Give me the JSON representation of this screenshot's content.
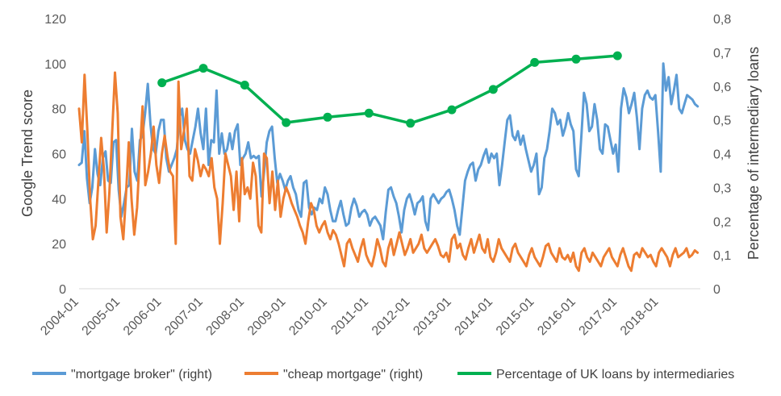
{
  "chart_data": {
    "type": "line",
    "title": "",
    "x_labels": [
      "2004-01",
      "2005-01",
      "2006-01",
      "2007-01",
      "2008-01",
      "2009-01",
      "2010-01",
      "2011-01",
      "2012-01",
      "2013-01",
      "2014-01",
      "2015-01",
      "2016-01",
      "2017-01",
      "2018-01"
    ],
    "y_left": {
      "label": "Google Trend score",
      "min": 0,
      "max": 120,
      "ticks": [
        "0",
        "20",
        "40",
        "60",
        "80",
        "100",
        "120"
      ]
    },
    "y_right": {
      "label": "Percentage of intermediary loans",
      "min": 0,
      "max": 0.8,
      "ticks": [
        "0",
        "0,1",
        "0,2",
        "0,3",
        "0,4",
        "0,5",
        "0,6",
        "0,7",
        "0,8"
      ]
    },
    "legend": {
      "position": "bottom"
    },
    "grid": false,
    "series": [
      {
        "name": "\"mortgage broker\" (right)",
        "axis": "left",
        "color": "#5B9BD5",
        "values": [
          55,
          56,
          70,
          49,
          38,
          45,
          62,
          51,
          46,
          58,
          61,
          48,
          47,
          65,
          66,
          44,
          32,
          38,
          45,
          46,
          71,
          52,
          48,
          66,
          68,
          78,
          91,
          73,
          62,
          60,
          70,
          75,
          75,
          58,
          52,
          55,
          58,
          62,
          76,
          80,
          66,
          62,
          60,
          66,
          72,
          80,
          69,
          62,
          80,
          55,
          66,
          65,
          88,
          60,
          69,
          60,
          62,
          69,
          62,
          70,
          73,
          55,
          58,
          60,
          65,
          58,
          59,
          58,
          59,
          41,
          52,
          65,
          70,
          72,
          58,
          47,
          51,
          48,
          44,
          48,
          50,
          45,
          42,
          35,
          32,
          47,
          48,
          36,
          33,
          36,
          35,
          40,
          38,
          45,
          42,
          35,
          30,
          30,
          35,
          39,
          33,
          28,
          29,
          36,
          40,
          37,
          32,
          34,
          35,
          33,
          28,
          31,
          32,
          30,
          28,
          22,
          34,
          44,
          45,
          41,
          38,
          32,
          25,
          35,
          40,
          42,
          38,
          33,
          38,
          39,
          41,
          30,
          26,
          40,
          42,
          40,
          38,
          40,
          41,
          43,
          44,
          40,
          35,
          28,
          24,
          36,
          48,
          52,
          55,
          56,
          48,
          53,
          55,
          59,
          62,
          56,
          60,
          58,
          60,
          46,
          55,
          65,
          75,
          77,
          68,
          66,
          70,
          64,
          68,
          62,
          57,
          52,
          55,
          60,
          42,
          45,
          58,
          62,
          70,
          80,
          78,
          73,
          75,
          68,
          72,
          78,
          73,
          70,
          53,
          50,
          68,
          87,
          82,
          70,
          72,
          82,
          75,
          62,
          60,
          73,
          72,
          66,
          60,
          64,
          52,
          80,
          89,
          85,
          78,
          82,
          87,
          76,
          62,
          80,
          86,
          88,
          85,
          84,
          86,
          70,
          52,
          100,
          88,
          94,
          82,
          88,
          95,
          80,
          78,
          82,
          86,
          85,
          84,
          82,
          81
        ]
      },
      {
        "name": "\"cheap mortgage\" (right)",
        "axis": "left",
        "color": "#ED7D31",
        "values": [
          80,
          65,
          95,
          70,
          40,
          22,
          28,
          48,
          67,
          53,
          25,
          43,
          70,
          96,
          78,
          32,
          22,
          42,
          65,
          40,
          24,
          36,
          60,
          81,
          46,
          52,
          60,
          72,
          55,
          47,
          60,
          68,
          59,
          52,
          50,
          20,
          92,
          62,
          70,
          80,
          50,
          48,
          62,
          57,
          50,
          55,
          53,
          50,
          58,
          45,
          40,
          20,
          38,
          60,
          55,
          50,
          35,
          52,
          30,
          58,
          42,
          45,
          40,
          56,
          50,
          28,
          25,
          60,
          58,
          38,
          52,
          35,
          48,
          32,
          40,
          45,
          42,
          38,
          35,
          32,
          28,
          25,
          20,
          30,
          38,
          35,
          28,
          25,
          28,
          30,
          25,
          22,
          26,
          24,
          20,
          15,
          10,
          20,
          22,
          18,
          15,
          12,
          18,
          22,
          15,
          12,
          10,
          15,
          22,
          18,
          12,
          10,
          18,
          22,
          15,
          20,
          25,
          20,
          15,
          18,
          22,
          16,
          18,
          20,
          24,
          18,
          16,
          18,
          20,
          22,
          19,
          15,
          14,
          16,
          12,
          22,
          24,
          18,
          20,
          15,
          13,
          18,
          22,
          16,
          20,
          24,
          18,
          16,
          22,
          14,
          12,
          16,
          22,
          18,
          16,
          14,
          12,
          18,
          20,
          16,
          14,
          12,
          10,
          15,
          18,
          14,
          12,
          10,
          14,
          19,
          20,
          16,
          14,
          12,
          18,
          14,
          13,
          15,
          12,
          16,
          10,
          8,
          16,
          18,
          14,
          12,
          16,
          14,
          12,
          10,
          14,
          16,
          18,
          14,
          12,
          10,
          15,
          18,
          14,
          10,
          8,
          15,
          16,
          14,
          18,
          16,
          14,
          15,
          12,
          10,
          16,
          18,
          16,
          14,
          10,
          15,
          18,
          14,
          15,
          16,
          18,
          14,
          15,
          17,
          16
        ]
      },
      {
        "name": "Percentage of UK loans by intermediaries",
        "axis": "right",
        "color": "#00B050",
        "points": [
          [
            2006.0,
            0.61
          ],
          [
            2007.0,
            0.653
          ],
          [
            2008.0,
            0.603
          ],
          [
            2009.0,
            0.492
          ],
          [
            2010.0,
            0.508
          ],
          [
            2011.0,
            0.52
          ],
          [
            2012.0,
            0.49
          ],
          [
            2013.0,
            0.53
          ],
          [
            2014.0,
            0.59
          ],
          [
            2015.0,
            0.67
          ],
          [
            2016.0,
            0.68
          ],
          [
            2017.0,
            0.69
          ]
        ]
      }
    ]
  }
}
